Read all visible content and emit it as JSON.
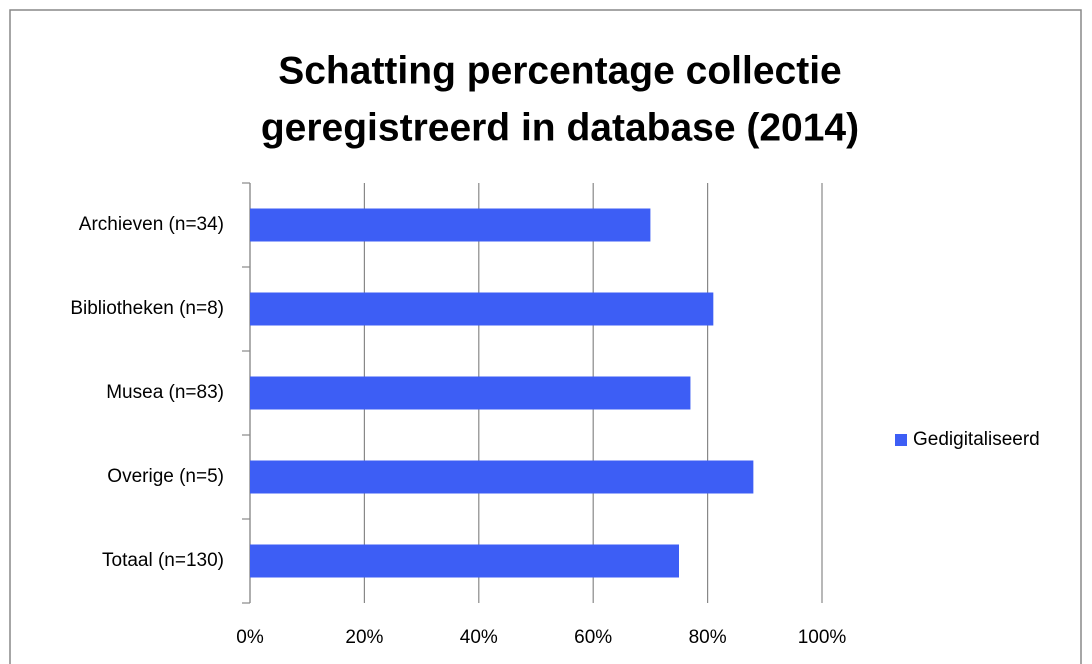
{
  "chart_data": {
    "type": "bar",
    "orientation": "horizontal",
    "title": [
      "Schatting percentage collectie",
      "geregistreerd in database (2014)"
    ],
    "categories": [
      "Archieven (n=34)",
      "Bibliotheken (n=8)",
      "Musea (n=83)",
      "Overige (n=5)",
      "Totaal (n=130)"
    ],
    "series": [
      {
        "name": "Gedigitaliseerd",
        "color": "#3d5ef5",
        "values": [
          70,
          81,
          77,
          88,
          75
        ]
      }
    ],
    "xlim": [
      0,
      100
    ],
    "xticks": [
      {
        "value": 0,
        "label": "0%"
      },
      {
        "value": 20,
        "label": "20%"
      },
      {
        "value": 40,
        "label": "40%"
      },
      {
        "value": 60,
        "label": "60%"
      },
      {
        "value": 80,
        "label": "80%"
      },
      {
        "value": 100,
        "label": "100%"
      }
    ],
    "grid": true,
    "legend": "right"
  }
}
